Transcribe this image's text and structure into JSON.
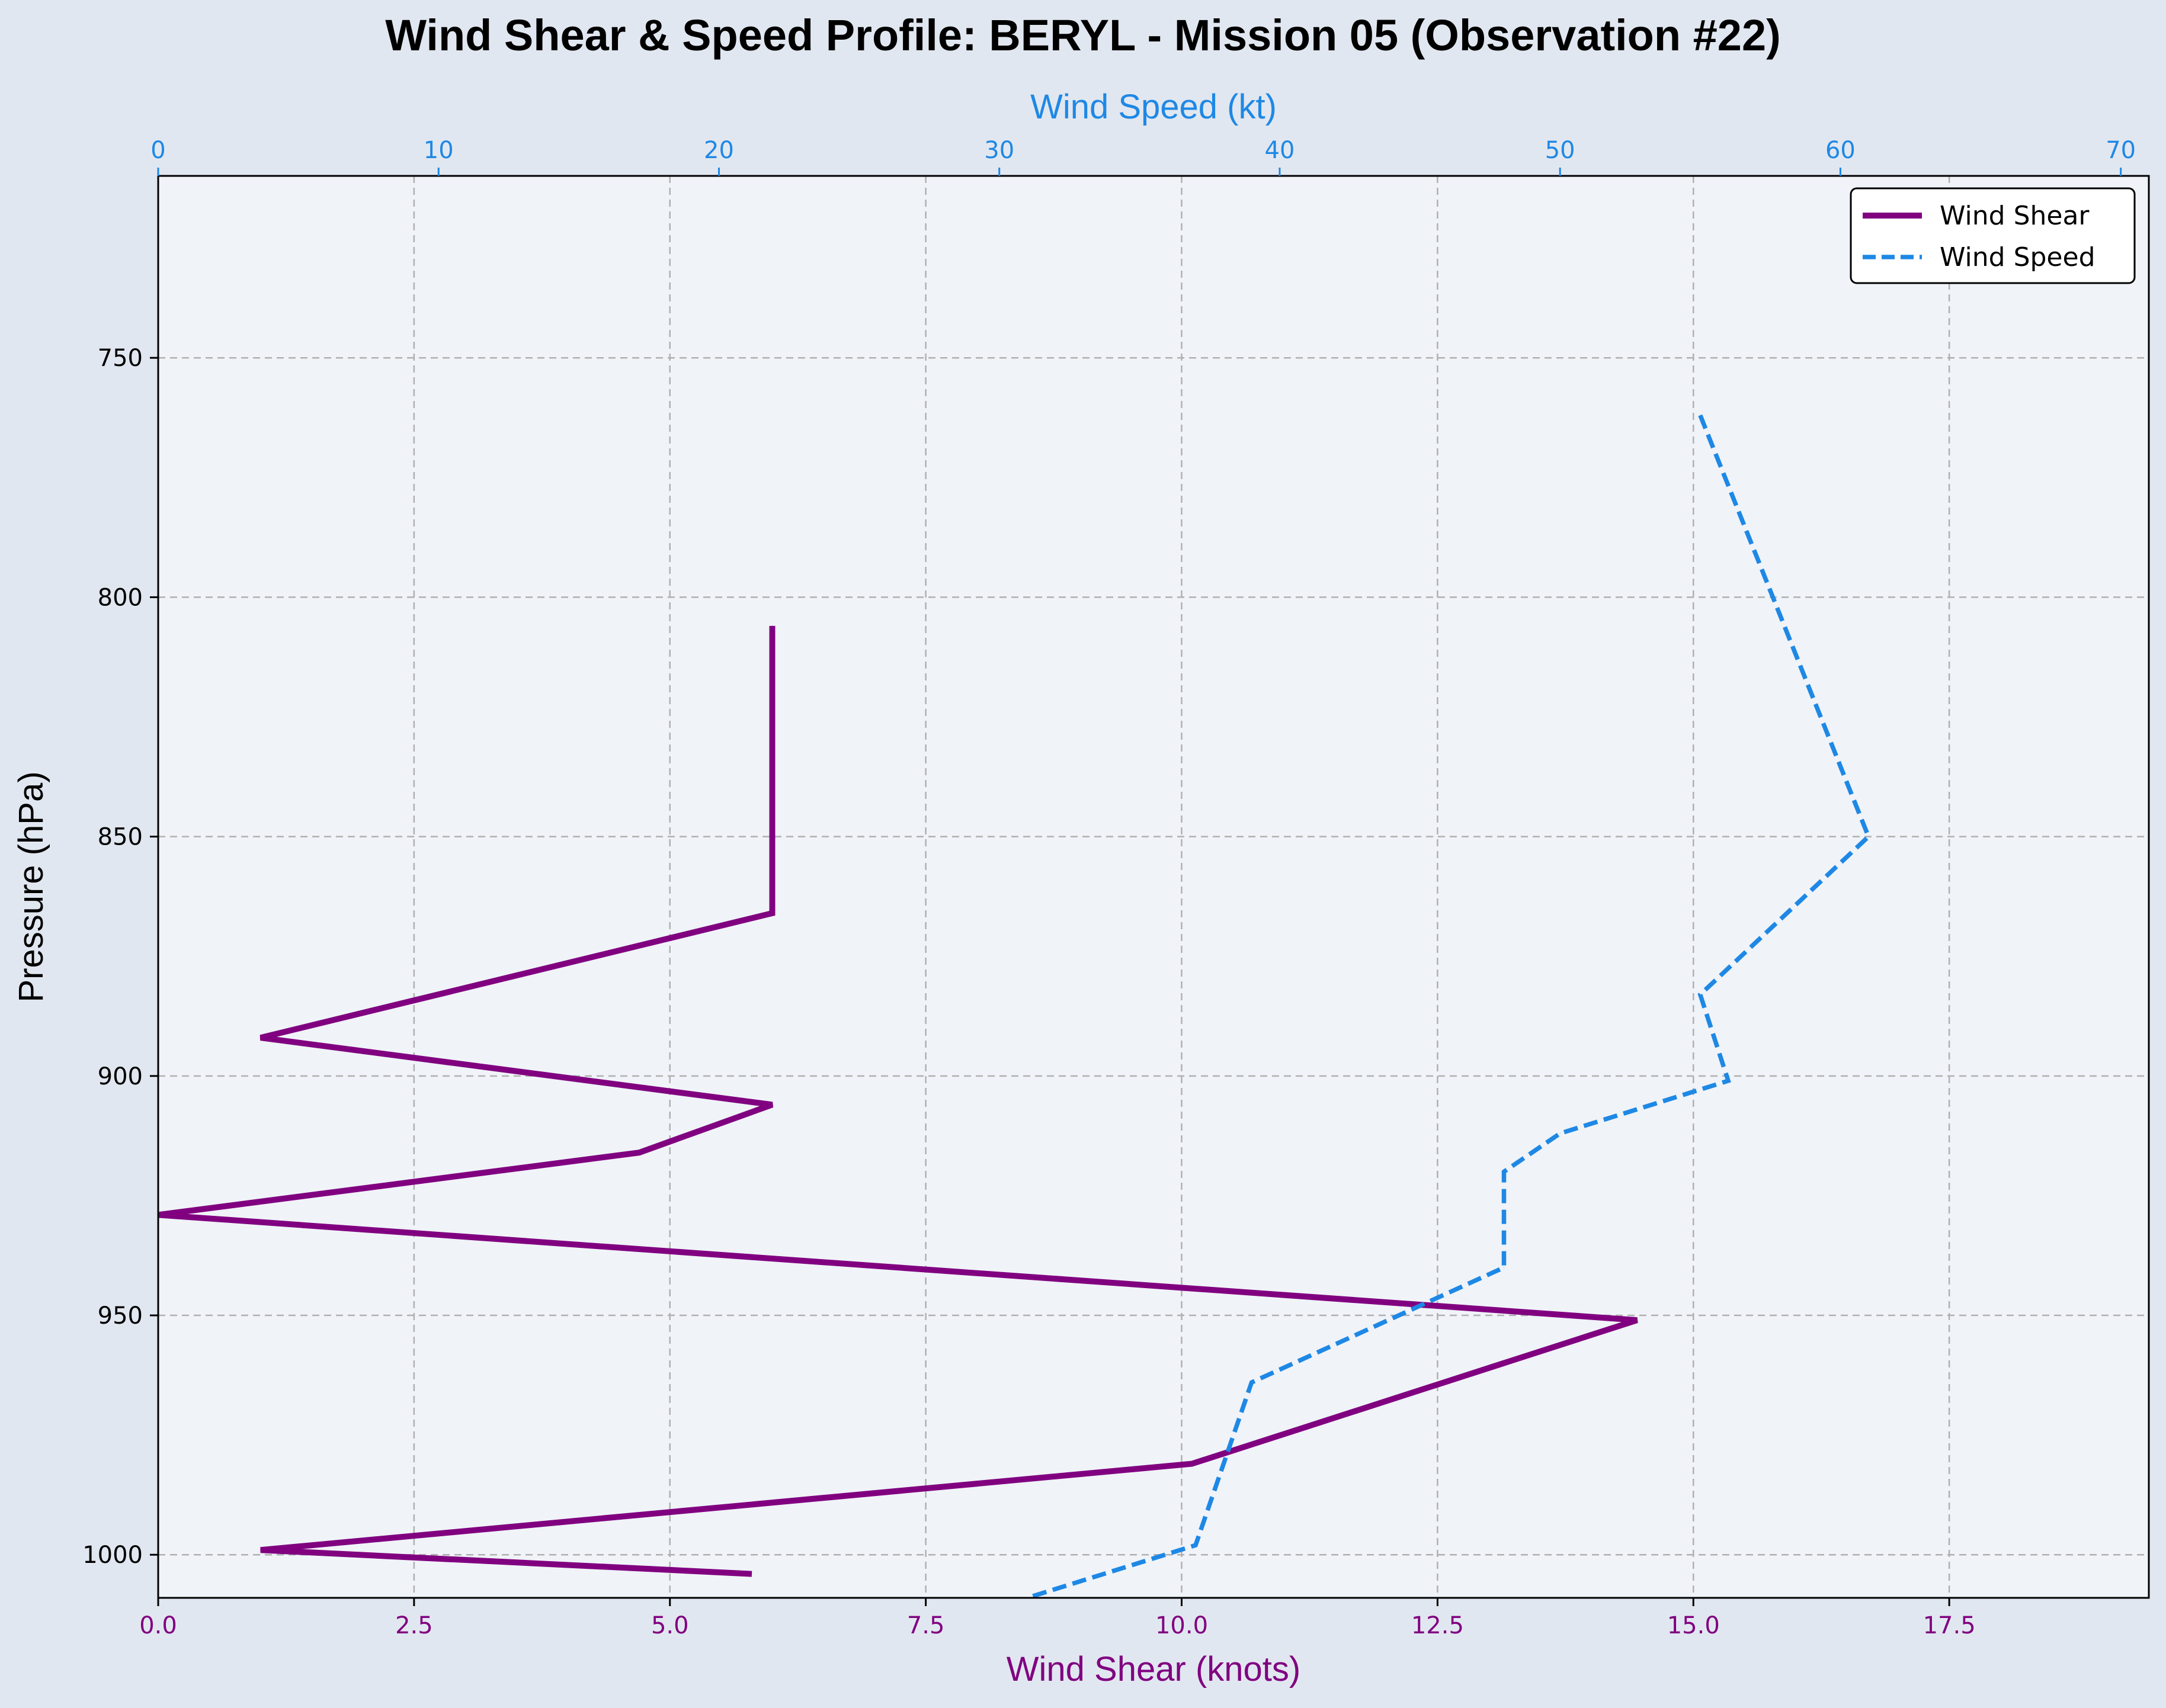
{
  "chart_data": {
    "type": "line",
    "title": "Wind Shear & Speed Profile: BERYL - Mission 05 (Observation #22)",
    "y_axis": {
      "label": "Pressure (hPa)",
      "range": [
        1009,
        712
      ],
      "inverted": true,
      "ticks": [
        750,
        800,
        850,
        900,
        950,
        1000
      ]
    },
    "x_axis_bottom": {
      "label": "Wind Shear (knots)",
      "range": [
        0,
        19.45
      ],
      "ticks": [
        0.0,
        2.5,
        5.0,
        7.5,
        10.0,
        12.5,
        15.0,
        17.5
      ],
      "tick_labels": [
        "0.0",
        "2.5",
        "5.0",
        "7.5",
        "10.0",
        "12.5",
        "15.0",
        "17.5"
      ],
      "color": "#800080"
    },
    "x_axis_top": {
      "label": "Wind Speed (kt)",
      "range": [
        0,
        71
      ],
      "ticks": [
        0,
        10,
        20,
        30,
        40,
        50,
        60,
        70
      ],
      "color": "#1e88e5"
    },
    "series": [
      {
        "name": "Wind Shear",
        "axis": "bottom",
        "color": "#800080",
        "style": "solid",
        "points": [
          {
            "shear": 6.0,
            "pressure": 806
          },
          {
            "shear": 6.0,
            "pressure": 866
          },
          {
            "shear": 1.0,
            "pressure": 892
          },
          {
            "shear": 6.0,
            "pressure": 906
          },
          {
            "shear": 4.7,
            "pressure": 916
          },
          {
            "shear": 0.0,
            "pressure": 929
          },
          {
            "shear": 14.45,
            "pressure": 951
          },
          {
            "shear": 10.1,
            "pressure": 981
          },
          {
            "shear": 1.0,
            "pressure": 999
          },
          {
            "shear": 5.8,
            "pressure": 1004
          }
        ]
      },
      {
        "name": "Wind Speed",
        "axis": "top",
        "color": "#1e88e5",
        "style": "dashed",
        "points": [
          {
            "speed": 55.0,
            "pressure": 762
          },
          {
            "speed": 61.0,
            "pressure": 850
          },
          {
            "speed": 55.0,
            "pressure": 883
          },
          {
            "speed": 56.0,
            "pressure": 901
          },
          {
            "speed": 50.0,
            "pressure": 912
          },
          {
            "speed": 48.0,
            "pressure": 920
          },
          {
            "speed": 48.0,
            "pressure": 940
          },
          {
            "speed": 39.0,
            "pressure": 964
          },
          {
            "speed": 37.0,
            "pressure": 998
          },
          {
            "speed": 31.0,
            "pressure": 1009
          }
        ]
      }
    ],
    "legend": {
      "position": "top-right",
      "entries": [
        "Wind Shear",
        "Wind Speed"
      ]
    },
    "grid": true
  },
  "colors": {
    "figure_bg": "#e1e7f0",
    "plot_bg": "#f0f3f8",
    "grid": "#b0b0b0",
    "shear": "#800080",
    "speed": "#1e88e5"
  }
}
